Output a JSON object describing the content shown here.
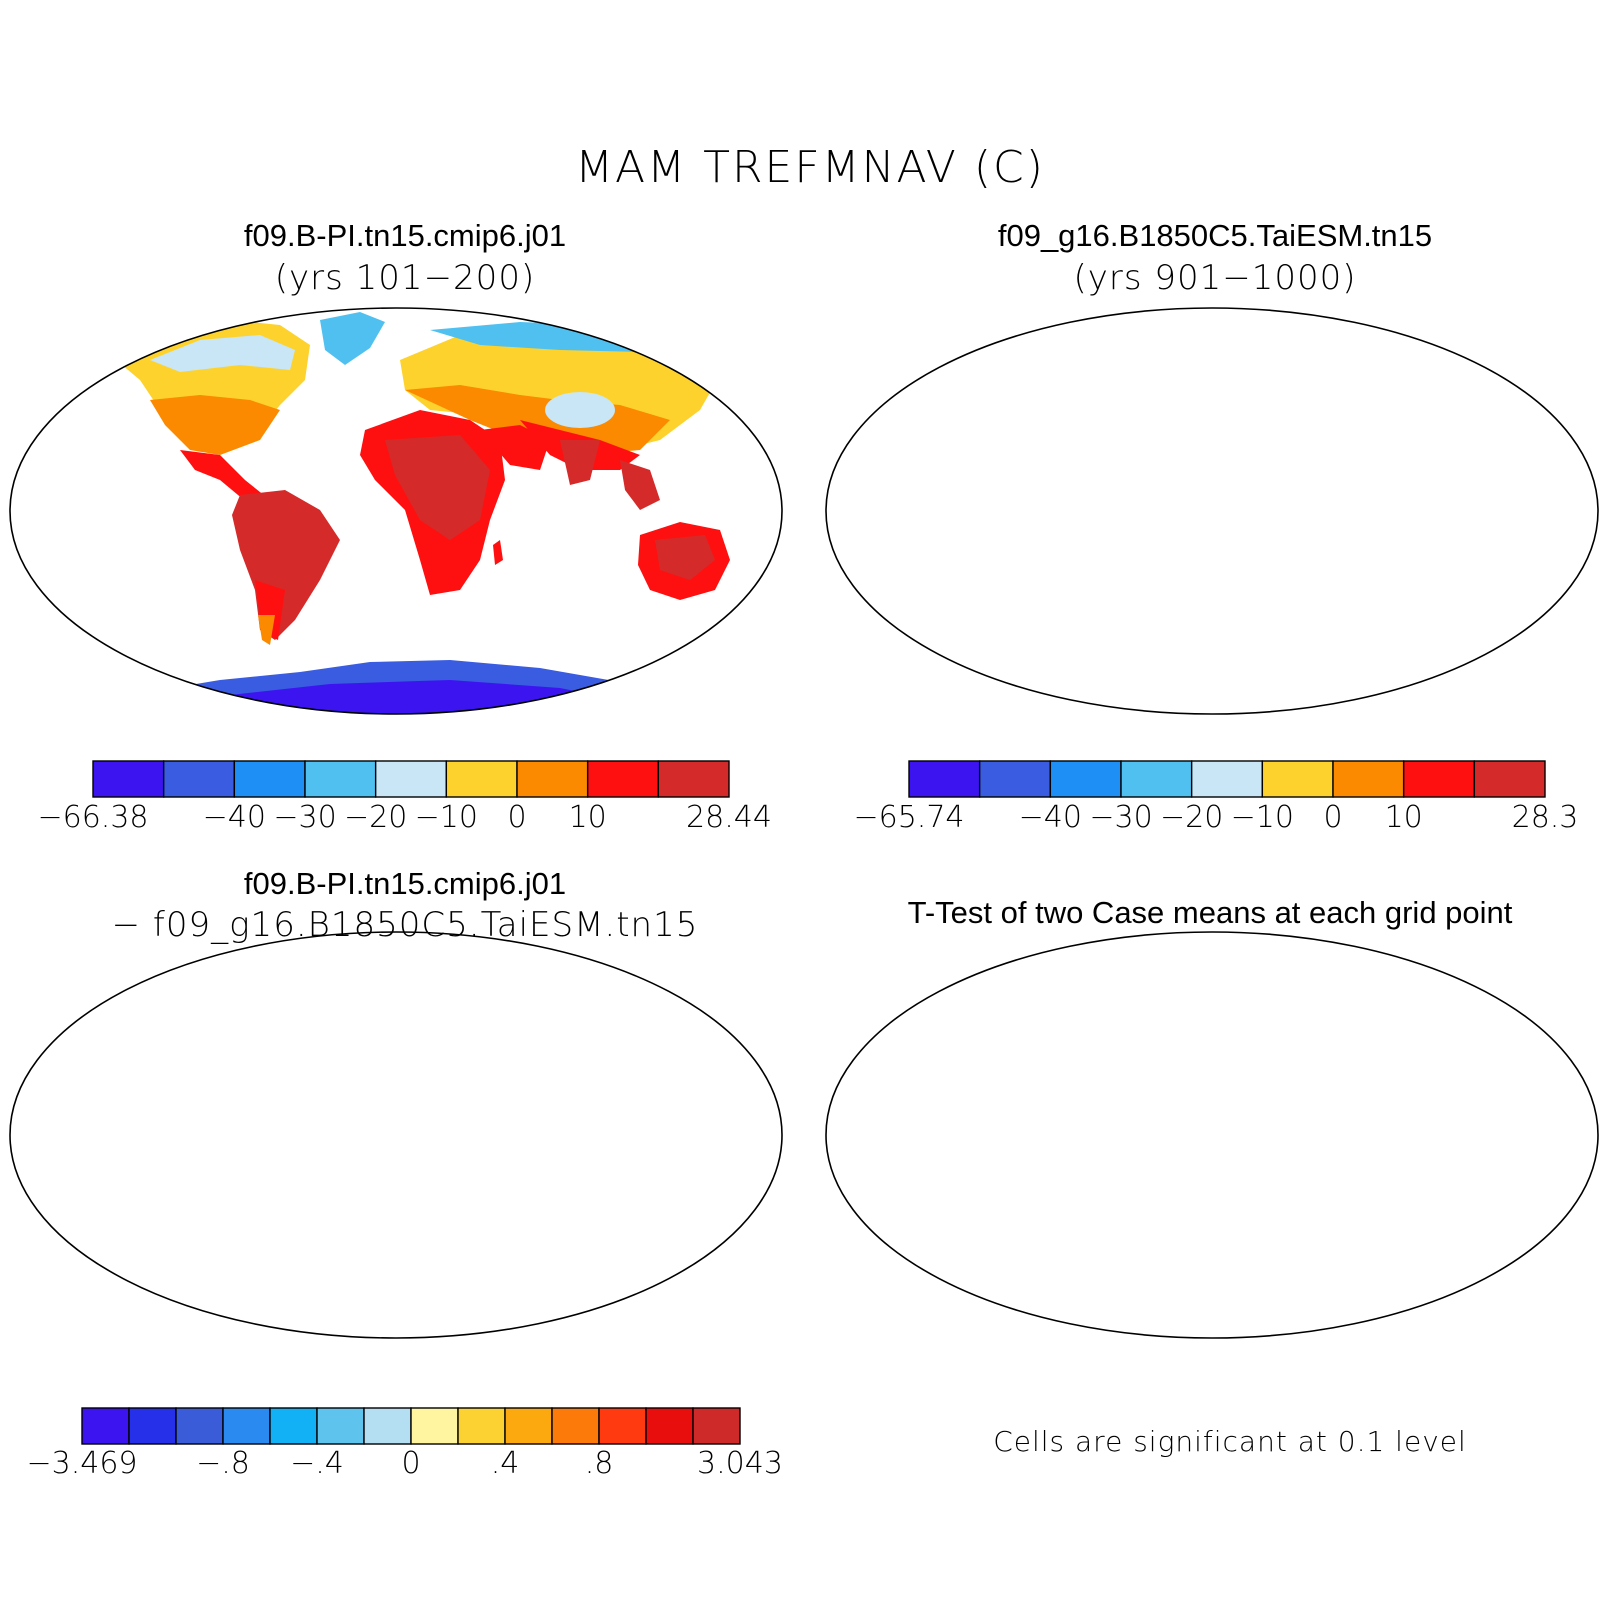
{
  "title": "MAM TREFMNAV (C)",
  "panels": {
    "case1": {
      "title": "f09.B-PI.tn15.cmip6.j01",
      "subtitle": "(yrs 101−200)"
    },
    "case2": {
      "title": "f09_g16.B1850C5.TaiESM.tn15",
      "subtitle": "(yrs 901−1000)"
    },
    "diff": {
      "title": "f09.B-PI.tn15.cmip6.j01",
      "subtitle": "− f09_g16.B1850C5.TaiESM.tn15"
    },
    "ttest": {
      "title": "T-Test of two Case means at each grid point",
      "note": "Cells are significant at 0.1 level"
    }
  },
  "colorbars": {
    "case1": {
      "colors": [
        "#3c14f0",
        "#3a5ce0",
        "#1e8ff5",
        "#50c0f0",
        "#c8e6f5",
        "#fdd22d",
        "#fb8a00",
        "#ff1010",
        "#d52a2a"
      ],
      "labels": [
        {
          "text": "−66.38",
          "edge": 0
        },
        {
          "text": "−40",
          "edge": 2
        },
        {
          "text": "−30",
          "edge": 3
        },
        {
          "text": "−20",
          "edge": 4
        },
        {
          "text": "−10",
          "edge": 5
        },
        {
          "text": "0",
          "edge": 6
        },
        {
          "text": "10",
          "edge": 7
        },
        {
          "text": "28.44",
          "edge": 9
        }
      ]
    },
    "case2": {
      "colors": [
        "#3c14f0",
        "#3a5ce0",
        "#1e8ff5",
        "#50c0f0",
        "#c8e6f5",
        "#fdd22d",
        "#fb8a00",
        "#ff1010",
        "#d52a2a"
      ],
      "labels": [
        {
          "text": "−65.74",
          "edge": 0
        },
        {
          "text": "−40",
          "edge": 2
        },
        {
          "text": "−30",
          "edge": 3
        },
        {
          "text": "−20",
          "edge": 4
        },
        {
          "text": "−10",
          "edge": 5
        },
        {
          "text": "0",
          "edge": 6
        },
        {
          "text": "10",
          "edge": 7
        },
        {
          "text": "28.3",
          "edge": 9
        }
      ]
    },
    "diff": {
      "colors": [
        "#3c14f0",
        "#2530e8",
        "#3a5cd8",
        "#2a8af0",
        "#12b0f5",
        "#5ec4ee",
        "#b4def2",
        "#fff5a0",
        "#fcd232",
        "#fba90f",
        "#fb7a0a",
        "#ff3a10",
        "#e80e0e",
        "#cf2a2a"
      ],
      "labels": [
        {
          "text": "−3.469",
          "edge": 0
        },
        {
          "text": "−.8",
          "edge": 3
        },
        {
          "text": "−.4",
          "edge": 5
        },
        {
          "text": "0",
          "edge": 7
        },
        {
          "text": ".4",
          "edge": 9
        },
        {
          "text": ".8",
          "edge": 11
        },
        {
          "text": "3.043",
          "edge": 14
        }
      ]
    }
  }
}
